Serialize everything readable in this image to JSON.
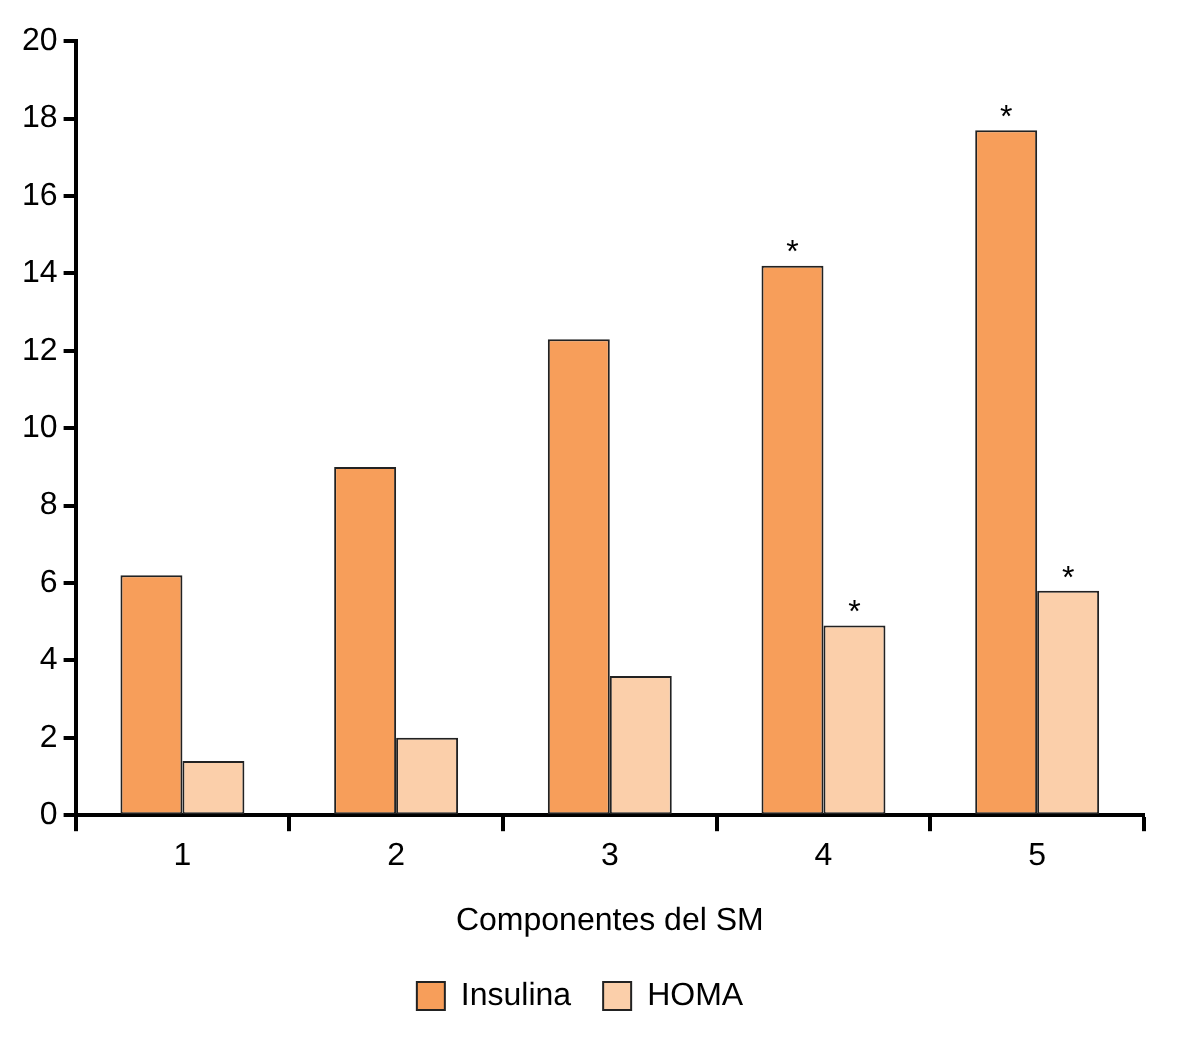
{
  "chart_data": {
    "type": "bar",
    "xlabel": "Componentes del SM",
    "categories": [
      "1",
      "2",
      "3",
      "4",
      "5"
    ],
    "series": [
      {
        "name": "Insulina",
        "color": "#f79e5a",
        "values": [
          6.2,
          9.0,
          12.3,
          14.2,
          17.7
        ]
      },
      {
        "name": "HOMA",
        "color": "#fbcfaa",
        "values": [
          1.4,
          2.0,
          3.6,
          4.9,
          5.8
        ]
      }
    ],
    "ylim": [
      0,
      20
    ],
    "yticks": [
      0,
      2,
      4,
      6,
      8,
      10,
      12,
      14,
      16,
      18,
      20
    ],
    "grid": false,
    "legend": "bottom",
    "annotations": [
      {
        "text": "*",
        "x": "4",
        "y": 14.2
      },
      {
        "text": "*",
        "x": "5",
        "y": 17.7
      },
      {
        "text": "*",
        "x": "4",
        "y": 4.9
      },
      {
        "text": "*",
        "x": "5",
        "y": 5.8
      }
    ]
  }
}
